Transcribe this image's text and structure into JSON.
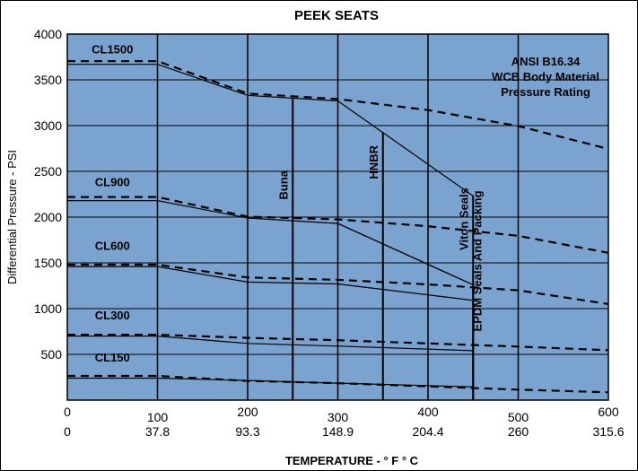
{
  "chart_data": {
    "type": "line",
    "title": "PEEK SEATS",
    "xlabel": "TEMPERATURE - ° F ° C",
    "ylabel": "Differential Pressure - PSI",
    "xlim": [
      0,
      600
    ],
    "ylim": [
      0,
      4000
    ],
    "x_ticks_f": [
      "0",
      "100",
      "200",
      "300",
      "400",
      "500",
      "600"
    ],
    "x_ticks_c": [
      "0",
      "37.8",
      "93.3",
      "148.9",
      "204.4",
      "260",
      "315.6"
    ],
    "x_tick_values": [
      0,
      100,
      200,
      300,
      400,
      500,
      600
    ],
    "y_ticks": [
      500,
      1000,
      1500,
      2000,
      2500,
      3000,
      3500,
      4000
    ],
    "y_tick_labels": [
      "500",
      "1000",
      "1500",
      "2000",
      "2500",
      "3000",
      "3500",
      "4000"
    ],
    "grid": true,
    "note": [
      "ANSI B16.34",
      "WCB Body Material",
      "Pressure Rating"
    ],
    "series": [
      {
        "name": "CL1500",
        "kind": "ansi",
        "label_at": [
          50,
          3790
        ],
        "x": [
          0,
          100,
          200,
          300,
          400,
          500,
          600
        ],
        "y": [
          3705,
          3705,
          3350,
          3290,
          3170,
          2995,
          2745
        ]
      },
      {
        "name": "",
        "kind": "seat",
        "x": [
          0,
          100,
          200,
          300,
          450
        ],
        "y": [
          3670,
          3670,
          3330,
          3270,
          2230
        ]
      },
      {
        "name": "CL900",
        "kind": "ansi",
        "label_at": [
          50,
          2340
        ],
        "x": [
          0,
          100,
          200,
          300,
          400,
          500,
          600
        ],
        "y": [
          2220,
          2220,
          2005,
          1975,
          1900,
          1795,
          1610
        ]
      },
      {
        "name": "",
        "kind": "seat",
        "x": [
          0,
          100,
          200,
          300,
          450
        ],
        "y": [
          2180,
          2180,
          1990,
          1930,
          1260
        ]
      },
      {
        "name": "CL600",
        "kind": "ansi",
        "label_at": [
          50,
          1640
        ],
        "x": [
          0,
          100,
          200,
          300,
          400,
          500,
          600
        ],
        "y": [
          1480,
          1480,
          1340,
          1315,
          1265,
          1200,
          1050
        ]
      },
      {
        "name": "",
        "kind": "seat",
        "x": [
          0,
          100,
          200,
          300,
          450
        ],
        "y": [
          1460,
          1460,
          1290,
          1270,
          1090
        ]
      },
      {
        "name": "CL300",
        "kind": "ansi",
        "label_at": [
          50,
          880
        ],
        "x": [
          0,
          100,
          200,
          300,
          400,
          500,
          600
        ],
        "y": [
          715,
          715,
          680,
          655,
          620,
          585,
          545
        ]
      },
      {
        "name": "",
        "kind": "seat",
        "x": [
          0,
          100,
          200,
          300,
          450
        ],
        "y": [
          700,
          700,
          620,
          590,
          540
        ]
      },
      {
        "name": "CL150",
        "kind": "ansi",
        "label_at": [
          50,
          420
        ],
        "x": [
          0,
          100,
          200,
          300,
          400,
          500,
          600
        ],
        "y": [
          265,
          265,
          210,
          185,
          150,
          115,
          85
        ]
      },
      {
        "name": "",
        "kind": "seat",
        "x": [
          0,
          100,
          200,
          300,
          450
        ],
        "y": [
          240,
          240,
          215,
          185,
          145
        ]
      }
    ],
    "seal_limits": [
      {
        "label": "Buna",
        "x": 250,
        "y_top": 3300,
        "label_y": 2350
      },
      {
        "label": "HNBR",
        "x": 350,
        "y_top": 2930,
        "label_y": 2600
      },
      {
        "label": "Viton Seals",
        "x": 450,
        "y_top": 2230,
        "label_y": 1980
      },
      {
        "label": "EPDM Seals And Packing",
        "x": 450,
        "y_top": 1270,
        "label_y": 1520,
        "label_side": "right"
      }
    ],
    "extra_lines": [
      {
        "x": [
          300,
          450
        ],
        "y": [
          1930,
          1260
        ]
      },
      {
        "x": [
          300,
          450
        ],
        "y": [
          1270,
          1090
        ]
      }
    ]
  }
}
